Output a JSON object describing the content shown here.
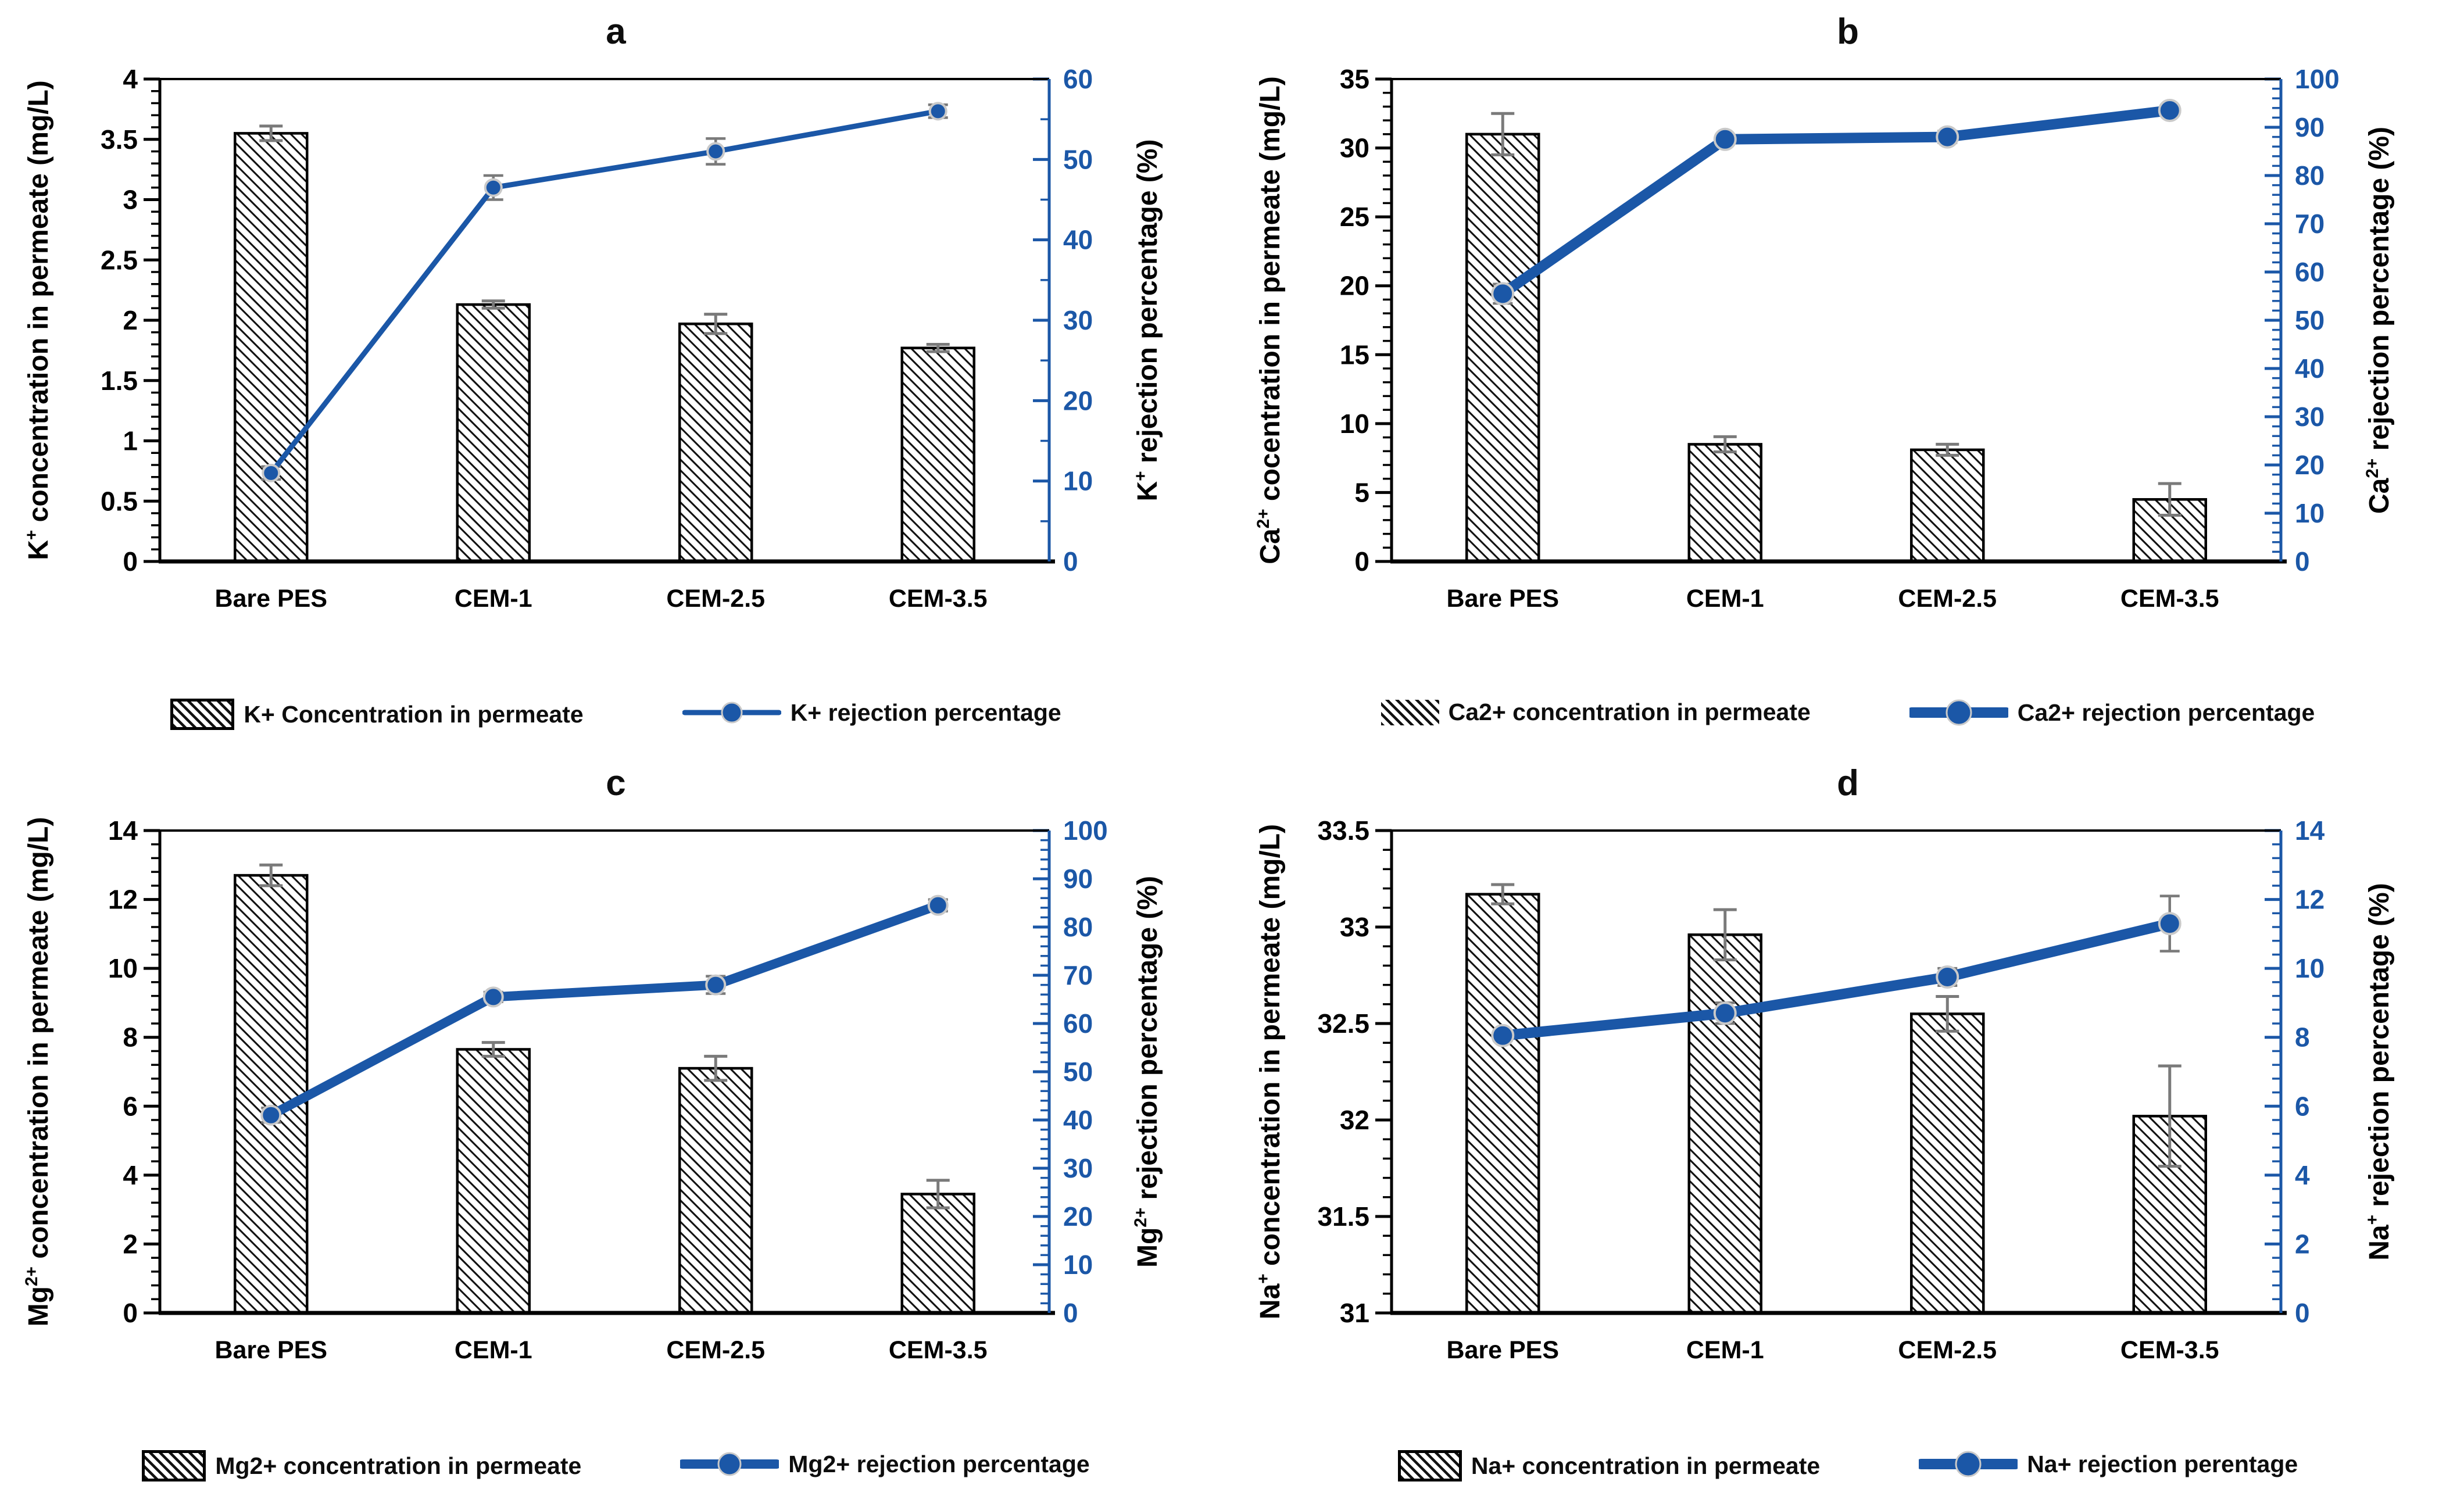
{
  "figure": {
    "colors": {
      "accent_blue": "#1B57A7",
      "error_bar_gray": "#7a7a7a",
      "axis_black": "#000000",
      "hatch_black": "#111111",
      "marker_halo": "#c9c9c9",
      "background": "#ffffff"
    },
    "categories": [
      "Bare PES",
      "CEM-1",
      "CEM-2.5",
      "CEM-3.5"
    ]
  },
  "chart_data": [
    {
      "type": "bar+line",
      "panel_label": "a",
      "categories": [
        "Bare PES",
        "CEM-1",
        "CEM-2.5",
        "CEM-3.5"
      ],
      "left_axis": {
        "label": "K⁺ concentration in permeate (mg/L)",
        "min": 0,
        "max": 4,
        "step": 0.5,
        "minor_step": 0.1
      },
      "right_axis": {
        "label": "K⁺ rejection percentage (%)",
        "min": 0,
        "max": 60,
        "step": 10,
        "minor_step": 5
      },
      "series": [
        {
          "name": "K+ Concentration in permeate",
          "type": "bar",
          "axis": "left",
          "values": [
            3.55,
            2.13,
            1.97,
            1.77
          ],
          "errors": [
            0.06,
            0.03,
            0.08,
            0.03
          ]
        },
        {
          "name": "K+ rejection percentage",
          "type": "line",
          "axis": "right",
          "values": [
            11,
            46.5,
            51,
            56
          ],
          "errors": [
            0.8,
            1.5,
            1.6,
            0.8
          ]
        }
      ],
      "style": {
        "line_width": 9,
        "marker_r": 14,
        "legend_border": true
      },
      "grid": false,
      "legend_position": "bottom"
    },
    {
      "type": "bar+line",
      "panel_label": "b",
      "categories": [
        "Bare PES",
        "CEM-1",
        "CEM-2.5",
        "CEM-3.5"
      ],
      "left_axis": {
        "label": "Ca²⁺ cocentration in permeate (mg/L)",
        "min": 0,
        "max": 35,
        "step": 5,
        "minor_step": 1
      },
      "right_axis": {
        "label": "Ca²⁺ rejection percentage (%)",
        "min": 0,
        "max": 100,
        "step": 10,
        "minor_step": 2
      },
      "series": [
        {
          "name": "Ca2+ concentration in permeate",
          "type": "bar",
          "axis": "left",
          "values": [
            31,
            8.5,
            8.1,
            4.5
          ],
          "errors": [
            1.5,
            0.55,
            0.4,
            1.15
          ]
        },
        {
          "name": "Ca2+ rejection percentage",
          "type": "line",
          "axis": "right",
          "values": [
            55.5,
            87.5,
            88,
            93.5
          ],
          "errors": [
            2,
            1,
            1.2,
            1
          ]
        }
      ],
      "style": {
        "line_width": 18,
        "marker_r": 18,
        "legend_border": false
      },
      "grid": false,
      "legend_position": "bottom"
    },
    {
      "type": "bar+line",
      "panel_label": "c",
      "categories": [
        "Bare PES",
        "CEM-1",
        "CEM-2.5",
        "CEM-3.5"
      ],
      "left_axis": {
        "label": "Mg²⁺ concentration in permeate (mg/L)",
        "min": 0,
        "max": 14,
        "step": 2,
        "minor_step": 0.4
      },
      "right_axis": {
        "label": "Mg²⁺ rejection percentage (%)",
        "min": 0,
        "max": 100,
        "step": 10,
        "minor_step": 2
      },
      "series": [
        {
          "name": "Mg2+ concentration in permeate",
          "type": "bar",
          "axis": "left",
          "values": [
            12.7,
            7.65,
            7.1,
            3.45
          ],
          "errors": [
            0.3,
            0.2,
            0.35,
            0.4
          ]
        },
        {
          "name": "Mg2+ rejection percentage",
          "type": "line",
          "axis": "right",
          "values": [
            41,
            65.5,
            68,
            84.5
          ],
          "errors": [
            1.5,
            1,
            1.8,
            1.2
          ]
        }
      ],
      "style": {
        "line_width": 16,
        "marker_r": 16,
        "legend_border": true
      },
      "grid": false,
      "legend_position": "bottom"
    },
    {
      "type": "bar+line",
      "panel_label": "d",
      "categories": [
        "Bare PES",
        "CEM-1",
        "CEM-2.5",
        "CEM-3.5"
      ],
      "left_axis": {
        "label": "Na⁺ concentration in permeate (mg/L)",
        "min": 31,
        "max": 33.5,
        "step": 0.5,
        "minor_step": 0.1
      },
      "right_axis": {
        "label": "Na⁺ rejection percentage (%)",
        "min": 0,
        "max": 14,
        "step": 2,
        "minor_step": 0.4
      },
      "series": [
        {
          "name": "Na+ concentration in permeate",
          "type": "bar",
          "axis": "left",
          "values": [
            33.17,
            32.96,
            32.55,
            32.02
          ],
          "errors": [
            0.05,
            0.13,
            0.09,
            0.26
          ]
        },
        {
          "name": "Na+ rejection perentage",
          "type": "line",
          "axis": "right",
          "values": [
            8.05,
            8.7,
            9.75,
            11.3
          ],
          "errors": [
            0.15,
            0.3,
            0.25,
            0.8
          ]
        }
      ],
      "style": {
        "line_width": 18,
        "marker_r": 18,
        "legend_border": true
      },
      "grid": false,
      "legend_position": "bottom"
    }
  ]
}
